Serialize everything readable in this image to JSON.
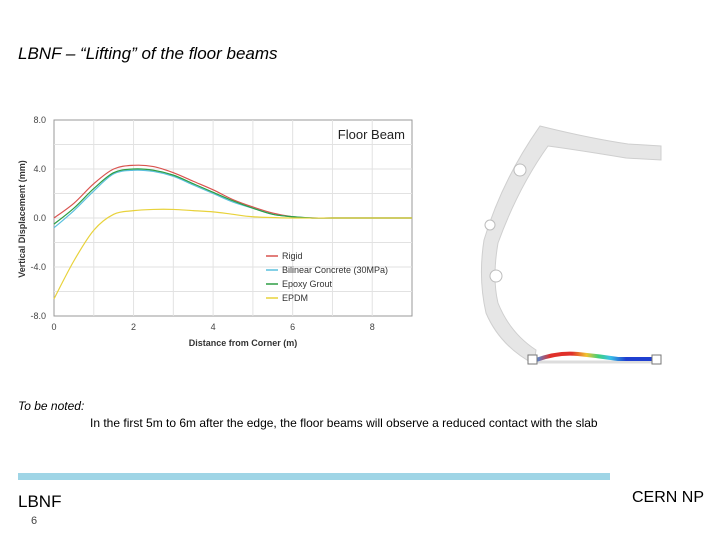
{
  "slide": {
    "title": "LBNF – “Lifting” of the floor beams",
    "note_label": "To be noted:",
    "note_text": "In the first 5m to 6m after the edge, the floor beams will observe a reduced contact with the slab",
    "footer_left": "LBNF",
    "footer_page": "6",
    "footer_right": "CERN NP"
  },
  "colors": {
    "footer_bar": "#9fd5e6",
    "grid": "#e2e2e2",
    "axis": "#999999"
  },
  "chart_data": {
    "type": "line",
    "title": "Floor Beam",
    "xlabel": "Distance from Corner (m)",
    "ylabel": "Vertical Displacement (mm)",
    "xlim": [
      0,
      9
    ],
    "ylim": [
      -8,
      8
    ],
    "xticks": [
      0,
      2,
      4,
      6,
      8
    ],
    "yticks": [
      8.0,
      4.0,
      0.0,
      -4.0,
      -8.0
    ],
    "ytick_labels": [
      "8.0",
      "4.0",
      "0.0",
      "-4.0",
      "-8.0"
    ],
    "grid": true,
    "legend_position": "lower-right",
    "series": [
      {
        "name": "Rigid",
        "color": "#d9534f",
        "x": [
          0,
          0.5,
          1,
          1.5,
          2,
          2.5,
          3,
          3.5,
          4,
          4.5,
          5,
          5.5,
          6,
          6.5,
          7,
          8,
          9
        ],
        "y": [
          0.0,
          1.2,
          2.8,
          4.0,
          4.3,
          4.2,
          3.7,
          3.0,
          2.3,
          1.5,
          0.9,
          0.4,
          0.1,
          0.0,
          0.0,
          0.0,
          0.0
        ]
      },
      {
        "name": "Bilinear Concrete (30MPa)",
        "color": "#5bc0de",
        "x": [
          0,
          0.5,
          1,
          1.5,
          2,
          2.5,
          3,
          3.5,
          4,
          4.5,
          5,
          5.5,
          6,
          6.5,
          7,
          8,
          9
        ],
        "y": [
          -0.8,
          0.6,
          2.2,
          3.6,
          3.9,
          3.8,
          3.4,
          2.7,
          2.0,
          1.3,
          0.8,
          0.3,
          0.1,
          0.0,
          0.0,
          0.0,
          0.0
        ]
      },
      {
        "name": "Epoxy Grout",
        "color": "#2e9e44",
        "x": [
          0,
          0.5,
          1,
          1.5,
          2,
          2.5,
          3,
          3.5,
          4,
          4.5,
          5,
          5.5,
          6,
          6.5,
          7,
          8,
          9
        ],
        "y": [
          -0.5,
          0.8,
          2.4,
          3.7,
          4.0,
          3.9,
          3.5,
          2.8,
          2.1,
          1.4,
          0.8,
          0.3,
          0.1,
          0.0,
          0.0,
          0.0,
          0.0
        ]
      },
      {
        "name": "EPDM",
        "color": "#e8d23b",
        "x": [
          0,
          0.5,
          1,
          1.5,
          2,
          2.5,
          3,
          3.5,
          4,
          4.5,
          5,
          6,
          7,
          8,
          9
        ],
        "y": [
          -6.6,
          -3.5,
          -1.0,
          0.3,
          0.6,
          0.7,
          0.7,
          0.6,
          0.5,
          0.3,
          0.1,
          0.0,
          0.0,
          0.0,
          0.0
        ]
      }
    ]
  }
}
